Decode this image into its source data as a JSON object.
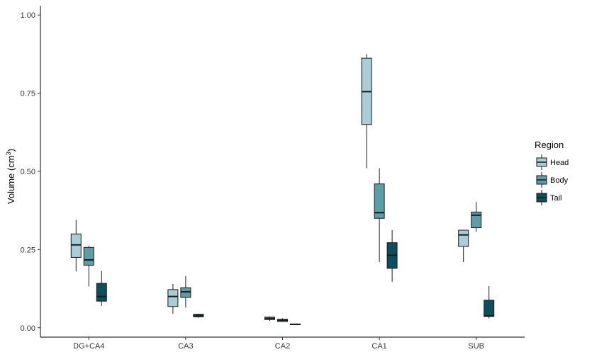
{
  "chart_data": {
    "type": "boxplot",
    "title": "",
    "xlabel": "",
    "ylabel": "Volume (cm",
    "ylabel_sup": "3",
    "ylabel_close": ")",
    "ylim": [
      -0.03,
      1.03
    ],
    "yticks": [
      0.0,
      0.25,
      0.5,
      0.75,
      1.0
    ],
    "ytick_labels": [
      "0.00",
      "0.25",
      "0.50",
      "0.75",
      "1.00"
    ],
    "categories": [
      "DG+CA4",
      "CA3",
      "CA2",
      "CA1",
      "SUB"
    ],
    "grid": false,
    "legend": {
      "title": "Region",
      "position": "right"
    },
    "series": [
      {
        "name": "Head",
        "color": "#a9ced7",
        "boxes": [
          {
            "whisker_low": 0.18,
            "q1": 0.225,
            "median": 0.265,
            "q3": 0.3,
            "whisker_high": 0.345
          },
          {
            "whisker_low": 0.045,
            "q1": 0.068,
            "median": 0.1,
            "q3": 0.122,
            "whisker_high": 0.14
          },
          {
            "whisker_low": 0.022,
            "q1": 0.026,
            "median": 0.03,
            "q3": 0.034,
            "whisker_high": 0.036
          },
          {
            "whisker_low": 0.51,
            "q1": 0.65,
            "median": 0.755,
            "q3": 0.862,
            "whisker_high": 0.875
          },
          {
            "whisker_low": 0.21,
            "q1": 0.26,
            "median": 0.297,
            "q3": 0.312,
            "whisker_high": 0.312
          }
        ]
      },
      {
        "name": "Body",
        "color": "#5b9ea7",
        "boxes": [
          {
            "whisker_low": 0.132,
            "q1": 0.2,
            "median": 0.217,
            "q3": 0.257,
            "whisker_high": 0.262
          },
          {
            "whisker_low": 0.065,
            "q1": 0.097,
            "median": 0.115,
            "q3": 0.128,
            "whisker_high": 0.165
          },
          {
            "whisker_low": 0.018,
            "q1": 0.02,
            "median": 0.024,
            "q3": 0.027,
            "whisker_high": 0.03
          },
          {
            "whisker_low": 0.21,
            "q1": 0.35,
            "median": 0.368,
            "q3": 0.46,
            "whisker_high": 0.51
          },
          {
            "whisker_low": 0.307,
            "q1": 0.32,
            "median": 0.36,
            "q3": 0.37,
            "whisker_high": 0.402
          }
        ]
      },
      {
        "name": "Tail",
        "color": "#0f4f5c",
        "boxes": [
          {
            "whisker_low": 0.07,
            "q1": 0.085,
            "median": 0.1,
            "q3": 0.142,
            "whisker_high": 0.182
          },
          {
            "whisker_low": 0.032,
            "q1": 0.035,
            "median": 0.039,
            "q3": 0.043,
            "whisker_high": 0.045
          },
          {
            "whisker_low": 0.009,
            "q1": 0.01,
            "median": 0.011,
            "q3": 0.012,
            "whisker_high": 0.012
          },
          {
            "whisker_low": 0.147,
            "q1": 0.19,
            "median": 0.232,
            "q3": 0.272,
            "whisker_high": 0.312
          },
          {
            "whisker_low": 0.03,
            "q1": 0.036,
            "median": 0.038,
            "q3": 0.088,
            "whisker_high": 0.133
          }
        ]
      }
    ]
  }
}
